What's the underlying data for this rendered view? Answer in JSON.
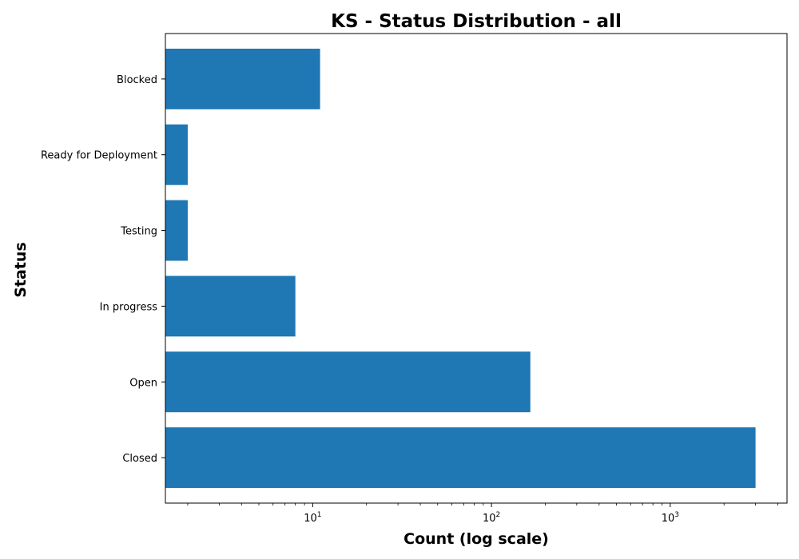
{
  "chart_data": {
    "type": "bar",
    "orientation": "horizontal",
    "title": "KS - Status Distribution - all",
    "xlabel": "Count (log scale)",
    "ylabel": "Status",
    "x_scale": "log",
    "xlim": [
      1.5,
      4500
    ],
    "x_ticks": [
      {
        "value": 10,
        "base": "10",
        "exp": "1"
      },
      {
        "value": 100,
        "base": "10",
        "exp": "2"
      },
      {
        "value": 1000,
        "base": "10",
        "exp": "3"
      }
    ],
    "categories": [
      "Blocked",
      "Ready for Deployment",
      "Testing",
      "In progress",
      "Open",
      "Closed"
    ],
    "values": [
      11,
      2,
      2,
      8,
      165,
      3000
    ],
    "bar_color": "#1f77b4",
    "grid": false
  }
}
